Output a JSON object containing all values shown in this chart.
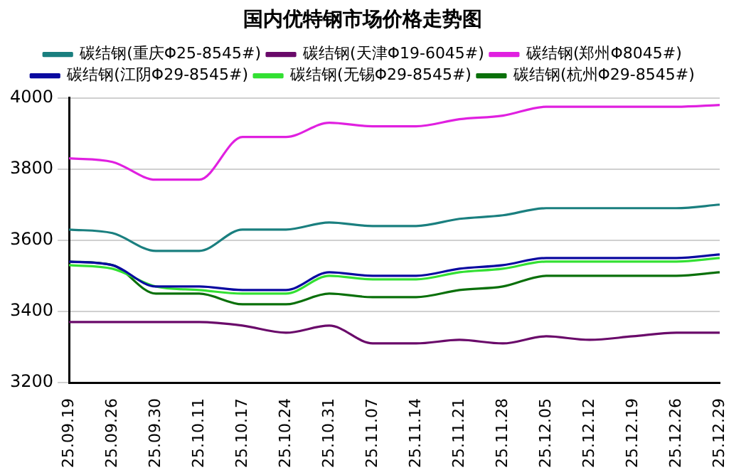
{
  "chart_data": {
    "type": "line",
    "title": "国内优特钢市场价格走势图",
    "categories": [
      "25.09.19",
      "25.09.26",
      "25.09.30",
      "25.10.11",
      "25.10.17",
      "25.10.24",
      "25.10.31",
      "25.11.07",
      "25.11.14",
      "25.11.21",
      "25.11.28",
      "25.12.05",
      "25.12.12",
      "25.12.19",
      "25.12.26",
      "25.12.29"
    ],
    "series": [
      {
        "name": "碳结钢(重庆Φ25-8545#)",
        "color": "#1a7f7f",
        "values": [
          3630,
          3620,
          3570,
          3570,
          3630,
          3630,
          3650,
          3640,
          3640,
          3660,
          3670,
          3690,
          3690,
          3690,
          3690,
          3700
        ]
      },
      {
        "name": "碳结钢(天津Φ19-6045#)",
        "color": "#6a0a6a",
        "values": [
          3370,
          3370,
          3370,
          3370,
          3360,
          3340,
          3360,
          3310,
          3310,
          3320,
          3310,
          3330,
          3320,
          3330,
          3340,
          3340
        ]
      },
      {
        "name": "碳结钢(郑州Φ8045#)",
        "color": "#e020e0",
        "values": [
          3830,
          3820,
          3770,
          3770,
          3890,
          3890,
          3930,
          3920,
          3920,
          3940,
          3950,
          3975,
          3975,
          3975,
          3975,
          3980
        ]
      },
      {
        "name": "碳结钢(江阴Φ29-8545#)",
        "color": "#0a0aa0",
        "values": [
          3540,
          3530,
          3470,
          3470,
          3460,
          3460,
          3510,
          3500,
          3500,
          3520,
          3530,
          3550,
          3550,
          3550,
          3550,
          3560
        ]
      },
      {
        "name": "碳结钢(无锡Φ29-8545#)",
        "color": "#33e033",
        "values": [
          3530,
          3520,
          3470,
          3460,
          3450,
          3450,
          3500,
          3490,
          3490,
          3510,
          3520,
          3540,
          3540,
          3540,
          3540,
          3550
        ]
      },
      {
        "name": "碳结钢(杭州Φ29-8545#)",
        "color": "#0a700a",
        "values": [
          3540,
          3530,
          3450,
          3450,
          3420,
          3420,
          3450,
          3440,
          3440,
          3460,
          3470,
          3500,
          3500,
          3500,
          3500,
          3510
        ]
      }
    ],
    "ylim": [
      3200,
      4000
    ],
    "yticks": [
      3200,
      3400,
      3600,
      3800,
      4000
    ],
    "grid": "y",
    "legend": "top",
    "marker": "none",
    "line_style": "solid"
  }
}
